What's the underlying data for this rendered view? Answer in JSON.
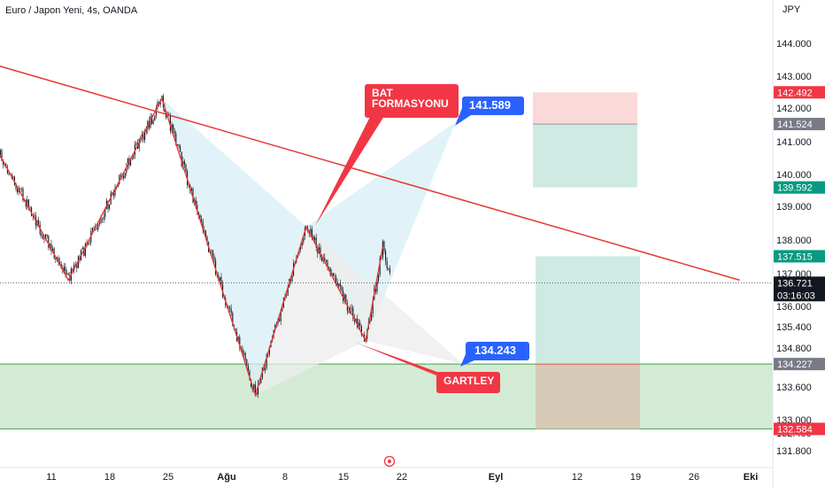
{
  "header": {
    "symbol": "Euro / Japon Yeni, 4s, OANDA",
    "currency": "JPY"
  },
  "colors": {
    "trendline": "#e53935",
    "zigzag": "#e53935",
    "candle": "#131722",
    "bat_fill": "#d7eff6",
    "gartley_fill": "#ececec",
    "support_zone": "#c8e6c9",
    "support_line": "#43a047",
    "target_fill": "#cfeae3",
    "stop_fill": "#fbd9d9",
    "loss_fill": "#d7c7b4",
    "blue_label": "#2962ff",
    "red_callout": "#f23645",
    "grey_badge": "#787b86",
    "green_badge": "#089981",
    "black_badge": "#131722"
  },
  "chart_data": {
    "type": "candlestick",
    "y_axis": {
      "range": [
        131.4,
        144.4
      ],
      "ticks": [
        "131.800",
        "132.400",
        "133.000",
        "133.600",
        "134.200",
        "134.800",
        "135.400",
        "136.000",
        "137.000",
        "138.000",
        "139.000",
        "140.000",
        "141.000",
        "142.000",
        "143.000",
        "144.000"
      ],
      "tick_values": [
        131.8,
        132.4,
        133.0,
        133.6,
        134.2,
        134.8,
        135.4,
        136.0,
        137.0,
        138.0,
        139.0,
        140.0,
        141.0,
        142.0,
        143.0,
        144.0
      ]
    },
    "x_axis": {
      "ticks": [
        "11",
        "18",
        "25",
        "Ağu",
        "8",
        "15",
        "22",
        "Eyl",
        "12",
        "19",
        "26",
        "Eki"
      ]
    },
    "price_badges": [
      {
        "text": "142.492",
        "value": 142.492,
        "style": "red"
      },
      {
        "text": "141.524",
        "value": 141.524,
        "style": "grey"
      },
      {
        "text": "139.592",
        "value": 139.592,
        "style": "green"
      },
      {
        "text": "137.515",
        "value": 137.515,
        "style": "green"
      },
      {
        "text": "136.721",
        "value": 136.721,
        "style": "black"
      },
      {
        "text": "134.227",
        "value": 134.227,
        "style": "grey"
      },
      {
        "text": "132.584",
        "value": 132.584,
        "style": "red"
      }
    ],
    "countdown": "03:16:03",
    "last_price": 136.721,
    "zigzag_points": [
      {
        "date": "Jul 3",
        "value": 141.5
      },
      {
        "date": "Jul 13",
        "value": 136.8
      },
      {
        "date": "Jul 24",
        "value": 142.3
      },
      {
        "date": "Aug 4",
        "value": 133.45
      },
      {
        "date": "Aug 10",
        "value": 138.4
      },
      {
        "date": "Aug 17",
        "value": 135.0
      },
      {
        "date": "Aug 19",
        "value": 137.8
      },
      {
        "date": "Aug 20",
        "value": 136.8
      }
    ],
    "trendline": [
      {
        "date": "Jul 1",
        "value": 143.6
      },
      {
        "date": "Sep 30",
        "value": 136.8
      }
    ],
    "support_zone": [
      132.584,
      134.227
    ],
    "annotations": [
      {
        "text_lines": [
          "BAT",
          "FORMASYONU"
        ],
        "style": "red-callout"
      },
      {
        "text_lines": [
          "141.589"
        ],
        "style": "blue-label"
      },
      {
        "text_lines": [
          "134.243"
        ],
        "style": "blue-label"
      },
      {
        "text_lines": [
          "GARTLEY"
        ],
        "style": "red-callout"
      }
    ],
    "positions": [
      {
        "target": 141.524,
        "stop": 142.492,
        "entry_bottom": 139.592
      },
      {
        "target": 137.515,
        "entry": 134.227,
        "stop": 132.584
      }
    ]
  }
}
